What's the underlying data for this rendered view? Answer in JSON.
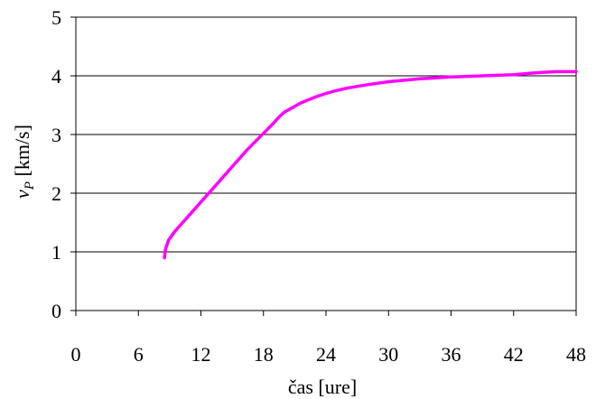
{
  "chart_data": {
    "type": "line",
    "title": "",
    "xlabel": "čas [ure]",
    "ylabel_main": "v",
    "ylabel_sub": "P",
    "ylabel_unit": " [km/s]",
    "xlim": [
      0,
      48
    ],
    "ylim": [
      0,
      5
    ],
    "x_ticks": [
      "0",
      "6",
      "12",
      "18",
      "24",
      "30",
      "36",
      "42",
      "48"
    ],
    "y_ticks": [
      "0",
      "1",
      "2",
      "3",
      "4",
      "5"
    ],
    "grid": "horizontal",
    "legend": "none",
    "series": [
      {
        "color": "#ff00ff",
        "x": [
          8.5,
          8.6,
          8.9,
          9.5,
          10.5,
          12.0,
          13.5,
          15.0,
          16.5,
          18.0,
          19.0,
          19.5,
          20.0,
          20.5,
          21.0,
          21.5,
          22.0,
          23.0,
          24.0,
          25.0,
          26.0,
          27.0,
          28.0,
          30.0,
          33.0,
          36.0,
          39.0,
          42.0,
          44.0,
          46.0,
          48.0
        ],
        "y": [
          0.9,
          1.05,
          1.2,
          1.35,
          1.55,
          1.85,
          2.15,
          2.45,
          2.75,
          3.02,
          3.2,
          3.3,
          3.38,
          3.43,
          3.48,
          3.53,
          3.57,
          3.64,
          3.7,
          3.75,
          3.79,
          3.82,
          3.85,
          3.9,
          3.95,
          3.98,
          4.0,
          4.02,
          4.05,
          4.07,
          4.07
        ]
      }
    ]
  }
}
